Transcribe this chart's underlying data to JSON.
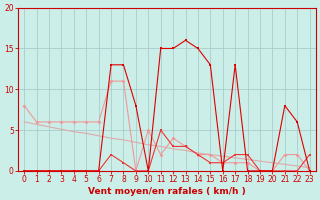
{
  "xlabel": "Vent moyen/en rafales ( km/h )",
  "background_color": "#cceee8",
  "hours": [
    0,
    1,
    2,
    3,
    4,
    5,
    6,
    7,
    8,
    9,
    10,
    11,
    12,
    13,
    14,
    15,
    16,
    17,
    18,
    19,
    20,
    21,
    22,
    23
  ],
  "series": {
    "rafales": [
      0,
      0,
      0,
      0,
      0,
      0,
      0,
      13,
      13,
      8,
      0,
      15,
      15,
      16,
      15,
      13,
      0,
      13,
      0,
      0,
      0,
      8,
      6,
      0
    ],
    "vent_moyen": [
      0,
      0,
      0,
      0,
      0,
      0,
      0,
      2,
      1,
      0,
      0,
      5,
      3,
      3,
      2,
      1,
      1,
      2,
      2,
      0,
      0,
      0,
      0,
      2
    ],
    "pink_line": [
      8,
      6,
      6,
      6,
      6,
      6,
      6,
      11,
      11,
      0,
      5,
      2,
      4,
      3,
      2,
      2,
      1,
      1,
      1,
      0,
      0,
      2,
      2,
      0
    ],
    "trend_line": [
      6.0,
      5.7,
      5.4,
      5.1,
      4.8,
      4.6,
      4.3,
      4.0,
      3.8,
      3.5,
      3.2,
      3.0,
      2.7,
      2.5,
      2.2,
      2.0,
      1.8,
      1.6,
      1.4,
      1.2,
      1.0,
      0.8,
      0.6,
      0.4
    ]
  },
  "ylim": [
    0,
    20
  ],
  "yticks": [
    0,
    5,
    10,
    15,
    20
  ],
  "xticks": [
    0,
    1,
    2,
    3,
    4,
    5,
    6,
    7,
    8,
    9,
    10,
    11,
    12,
    13,
    14,
    15,
    16,
    17,
    18,
    19,
    20,
    21,
    22,
    23
  ],
  "color_rafales": "#dd0000",
  "color_vent": "#ee3333",
  "color_pink": "#ee9999",
  "color_trend": "#ddaaaa",
  "grid_color": "#aacccc",
  "axis_color": "#cc0000",
  "tick_color": "#cc0000"
}
